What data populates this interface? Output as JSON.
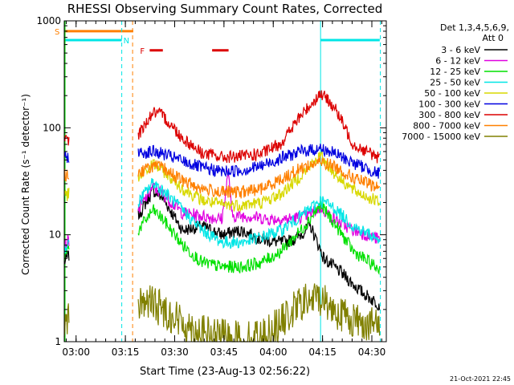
{
  "chart_data": {
    "type": "line",
    "title": "RHESSI Observing Summary Count Rates, Corrected",
    "xlabel": "Start Time (23-Aug-13 02:56:22)",
    "ylabel": "Corrected Count Rate (s⁻¹ detector⁻¹)",
    "y_scale": "log",
    "ylim": [
      1,
      1000
    ],
    "x_unit": "minutes after 02:56:22",
    "xlim": [
      0,
      98
    ],
    "x_ticks": [
      {
        "label": "03:00",
        "x": 3.6
      },
      {
        "label": "03:15",
        "x": 18.6
      },
      {
        "label": "03:30",
        "x": 33.6
      },
      {
        "label": "03:45",
        "x": 48.6
      },
      {
        "label": "04:00",
        "x": 63.6
      },
      {
        "label": "04:15",
        "x": 78.6
      },
      {
        "label": "04:30",
        "x": 93.6
      }
    ],
    "y_ticks": [
      {
        "label": "1",
        "value": 1
      },
      {
        "label": "10",
        "value": 10
      },
      {
        "label": "100",
        "value": 100
      },
      {
        "label": "1000",
        "value": 1000
      }
    ],
    "legend_header": [
      "Det 1,3,4,5,6,9,",
      "Att 0"
    ],
    "legend_placement": "right",
    "series": [
      {
        "name": "3 - 6 keV",
        "color": "#000000",
        "points": [
          [
            0,
            5.5
          ],
          [
            1.5,
            6.5
          ],
          [
            22.5,
            15
          ],
          [
            27,
            26
          ],
          [
            30,
            22
          ],
          [
            36,
            11
          ],
          [
            42,
            12
          ],
          [
            48,
            10
          ],
          [
            54,
            11
          ],
          [
            60,
            9
          ],
          [
            66,
            8.5
          ],
          [
            70,
            9
          ],
          [
            75,
            12
          ],
          [
            79,
            6
          ],
          [
            84,
            4.5
          ],
          [
            90,
            3
          ],
          [
            96,
            2.2
          ]
        ]
      },
      {
        "name": "6 - 12 keV",
        "color": "#e000e0",
        "points": [
          [
            0,
            8
          ],
          [
            1.5,
            9
          ],
          [
            22.5,
            17
          ],
          [
            27,
            28
          ],
          [
            30,
            24
          ],
          [
            36,
            16
          ],
          [
            42,
            15
          ],
          [
            48,
            14
          ],
          [
            50,
            40
          ],
          [
            51,
            15
          ],
          [
            56,
            15
          ],
          [
            62,
            14
          ],
          [
            68,
            14
          ],
          [
            74,
            15
          ],
          [
            78,
            18
          ],
          [
            82,
            14
          ],
          [
            88,
            11
          ],
          [
            96,
            9
          ]
        ]
      },
      {
        "name": "12 - 25 keV",
        "color": "#00e000",
        "points": [
          [
            0,
            7
          ],
          [
            1.5,
            7.5
          ],
          [
            22.5,
            11
          ],
          [
            27,
            17
          ],
          [
            30,
            14
          ],
          [
            36,
            8
          ],
          [
            42,
            5.5
          ],
          [
            48,
            5
          ],
          [
            54,
            5
          ],
          [
            60,
            5.5
          ],
          [
            66,
            7
          ],
          [
            72,
            11
          ],
          [
            78,
            19
          ],
          [
            82,
            13
          ],
          [
            88,
            7
          ],
          [
            96,
            4.7
          ]
        ]
      },
      {
        "name": "25 - 50 keV",
        "color": "#00e6e6",
        "points": [
          [
            0,
            7.5
          ],
          [
            1.5,
            8
          ],
          [
            22.5,
            20
          ],
          [
            27,
            31
          ],
          [
            30,
            26
          ],
          [
            36,
            17
          ],
          [
            42,
            11
          ],
          [
            48,
            8.5
          ],
          [
            54,
            8.5
          ],
          [
            60,
            9.5
          ],
          [
            66,
            11
          ],
          [
            72,
            15
          ],
          [
            78,
            21
          ],
          [
            82,
            18
          ],
          [
            88,
            12
          ],
          [
            96,
            9
          ]
        ]
      },
      {
        "name": "50 - 100 keV",
        "color": "#d8d800",
        "points": [
          [
            0,
            23
          ],
          [
            1.5,
            24
          ],
          [
            22.5,
            33
          ],
          [
            27,
            46
          ],
          [
            30,
            40
          ],
          [
            36,
            27
          ],
          [
            42,
            21
          ],
          [
            48,
            19
          ],
          [
            54,
            19
          ],
          [
            60,
            20
          ],
          [
            66,
            24
          ],
          [
            72,
            36
          ],
          [
            78,
            55
          ],
          [
            82,
            38
          ],
          [
            88,
            26
          ],
          [
            96,
            20
          ]
        ]
      },
      {
        "name": "100 - 300 keV",
        "color": "#0000e0",
        "points": [
          [
            0,
            52
          ],
          [
            1.5,
            54
          ],
          [
            22.5,
            58
          ],
          [
            27,
            60
          ],
          [
            30,
            57
          ],
          [
            36,
            49
          ],
          [
            42,
            42
          ],
          [
            48,
            39
          ],
          [
            54,
            40
          ],
          [
            60,
            44
          ],
          [
            66,
            52
          ],
          [
            72,
            60
          ],
          [
            78,
            64
          ],
          [
            82,
            58
          ],
          [
            88,
            47
          ],
          [
            96,
            37
          ]
        ]
      },
      {
        "name": "300 - 800 keV",
        "color": "#dc0000",
        "points": [
          [
            0,
            75
          ],
          [
            1.5,
            78
          ],
          [
            22.5,
            86
          ],
          [
            27,
            140
          ],
          [
            30,
            130
          ],
          [
            36,
            80
          ],
          [
            42,
            58
          ],
          [
            48,
            53
          ],
          [
            54,
            54
          ],
          [
            60,
            57
          ],
          [
            66,
            72
          ],
          [
            72,
            130
          ],
          [
            78,
            210
          ],
          [
            82,
            160
          ],
          [
            88,
            70
          ],
          [
            96,
            52
          ]
        ]
      },
      {
        "name": "800 - 7000 keV",
        "color": "#ff8000",
        "points": [
          [
            0,
            36
          ],
          [
            1.5,
            37
          ],
          [
            22.5,
            38
          ],
          [
            27,
            44
          ],
          [
            30,
            42
          ],
          [
            36,
            32
          ],
          [
            42,
            27
          ],
          [
            48,
            25
          ],
          [
            54,
            25
          ],
          [
            60,
            27
          ],
          [
            66,
            33
          ],
          [
            72,
            42
          ],
          [
            78,
            48
          ],
          [
            82,
            44
          ],
          [
            88,
            34
          ],
          [
            96,
            27
          ]
        ]
      },
      {
        "name": "7000 - 15000 keV",
        "color": "#808000",
        "points": [
          [
            0,
            1.6
          ],
          [
            1.5,
            1.6
          ],
          [
            22.5,
            2.4
          ],
          [
            27,
            2.3
          ],
          [
            30,
            2.0
          ],
          [
            36,
            1.5
          ],
          [
            42,
            1.2
          ],
          [
            48,
            1.1
          ],
          [
            54,
            1.05
          ],
          [
            60,
            1.1
          ],
          [
            66,
            1.5
          ],
          [
            72,
            2.3
          ],
          [
            78,
            2.6
          ],
          [
            82,
            2.0
          ],
          [
            88,
            1.6
          ],
          [
            96,
            1.4
          ]
        ]
      }
    ],
    "flag_bars": [
      {
        "label": "S",
        "color": "#ff8000",
        "y": 800,
        "segments": [
          [
            0,
            21
          ]
        ]
      },
      {
        "label": "N",
        "color": "#00e6e6",
        "y": 660,
        "segments": [
          [
            0,
            17.5
          ],
          [
            78,
            96
          ]
        ]
      },
      {
        "label": "F",
        "color": "#dc0000",
        "y": 530,
        "segments": [
          [
            26,
            30
          ],
          [
            45,
            50
          ]
        ]
      }
    ],
    "vlines": [
      {
        "x": 17.5,
        "color": "#00e6e6",
        "style": "dashed"
      },
      {
        "x": 20.8,
        "color": "#ff8000",
        "style": "dashed"
      },
      {
        "x": 78.0,
        "color": "#00e6e6",
        "style": "solid"
      },
      {
        "x": 96.2,
        "color": "#00e6e6",
        "style": "dashed"
      }
    ],
    "data_gap": [
      1.5,
      22.5
    ],
    "footer_date": "21-Oct-2021 22:45"
  }
}
